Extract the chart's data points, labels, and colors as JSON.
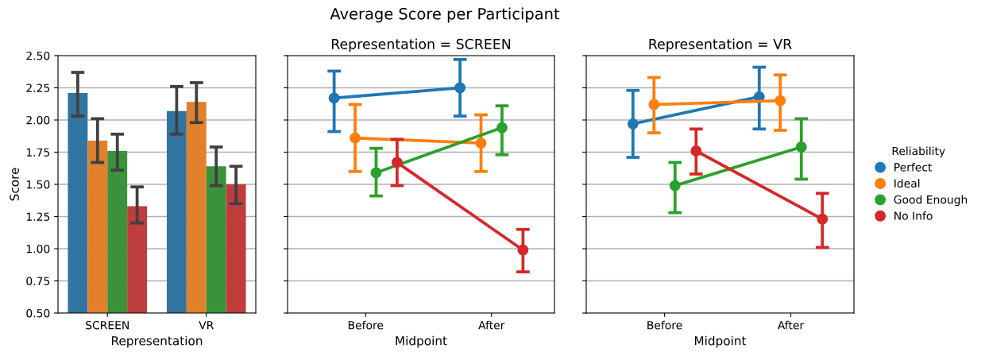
{
  "chart_data": [
    {
      "type": "bar",
      "xlabel": "Representation",
      "ylabel": "Score",
      "categories": [
        "SCREEN",
        "VR"
      ],
      "ylim": [
        0.5,
        2.5
      ],
      "yticks": [
        {
          "value": 0.5,
          "label": "0.50"
        },
        {
          "value": 0.75,
          "label": "0.75"
        },
        {
          "value": 1.0,
          "label": "1.00"
        },
        {
          "value": 1.25,
          "label": "1.25"
        },
        {
          "value": 1.5,
          "label": "1.50"
        },
        {
          "value": 1.75,
          "label": "1.75"
        },
        {
          "value": 2.0,
          "label": "2.00"
        },
        {
          "value": 2.25,
          "label": "2.25"
        },
        {
          "value": 2.5,
          "label": "2.50"
        }
      ],
      "grid": "y",
      "series": [
        {
          "color": "#3274a1",
          "values": [
            2.21,
            2.07
          ],
          "errors": [
            [
              2.03,
              2.37
            ],
            [
              1.89,
              2.26
            ]
          ]
        },
        {
          "color": "#e1812c",
          "values": [
            1.84,
            2.14
          ],
          "errors": [
            [
              1.67,
              2.01
            ],
            [
              1.98,
              2.29
            ]
          ]
        },
        {
          "color": "#3a923a",
          "values": [
            1.76,
            1.64
          ],
          "errors": [
            [
              1.61,
              1.89
            ],
            [
              1.49,
              1.79
            ]
          ]
        },
        {
          "color": "#c03d3e",
          "values": [
            1.33,
            1.5
          ],
          "errors": [
            [
              1.2,
              1.48
            ],
            [
              1.35,
              1.64
            ]
          ]
        }
      ]
    },
    {
      "type": "line",
      "title": "Average Score per Participant",
      "subtitle": "Representation = SCREEN",
      "xlabel": "Midpoint",
      "categories": [
        "Before",
        "After"
      ],
      "ylim": [
        0.5,
        2.5
      ],
      "grid": "y",
      "marker": "circle",
      "tick_labels": "x",
      "series": [
        {
          "color": "#1f77b4",
          "values": [
            2.17,
            2.25
          ],
          "errors": [
            [
              1.91,
              2.38
            ],
            [
              2.03,
              2.47
            ]
          ]
        },
        {
          "color": "#ff7f0e",
          "values": [
            1.86,
            1.82
          ],
          "errors": [
            [
              1.6,
              2.12
            ],
            [
              1.6,
              2.04
            ]
          ]
        },
        {
          "color": "#2ca02c",
          "values": [
            1.59,
            1.94
          ],
          "errors": [
            [
              1.41,
              1.78
            ],
            [
              1.73,
              2.11
            ]
          ]
        },
        {
          "color": "#d62728",
          "values": [
            1.67,
            0.99
          ],
          "errors": [
            [
              1.49,
              1.85
            ],
            [
              0.82,
              1.15
            ]
          ]
        }
      ]
    },
    {
      "type": "line",
      "subtitle": "Representation = VR",
      "xlabel": "Midpoint",
      "categories": [
        "Before",
        "After"
      ],
      "ylim": [
        0.5,
        2.5
      ],
      "grid": "y",
      "marker": "circle",
      "tick_labels": "x",
      "legend": "right",
      "legend_title": "Reliability",
      "series": [
        {
          "name": "Perfect",
          "color": "#1f77b4",
          "values": [
            1.97,
            2.18
          ],
          "errors": [
            [
              1.71,
              2.23
            ],
            [
              1.93,
              2.41
            ]
          ]
        },
        {
          "name": "Ideal",
          "color": "#ff7f0e",
          "values": [
            2.12,
            2.15
          ],
          "errors": [
            [
              1.9,
              2.33
            ],
            [
              1.92,
              2.35
            ]
          ]
        },
        {
          "name": "Good Enough",
          "color": "#2ca02c",
          "values": [
            1.49,
            1.79
          ],
          "errors": [
            [
              1.28,
              1.67
            ],
            [
              1.54,
              2.01
            ]
          ]
        },
        {
          "name": "No Info",
          "color": "#d62728",
          "values": [
            1.76,
            1.23
          ],
          "errors": [
            [
              1.58,
              1.93
            ],
            [
              1.01,
              1.43
            ]
          ]
        }
      ]
    }
  ]
}
